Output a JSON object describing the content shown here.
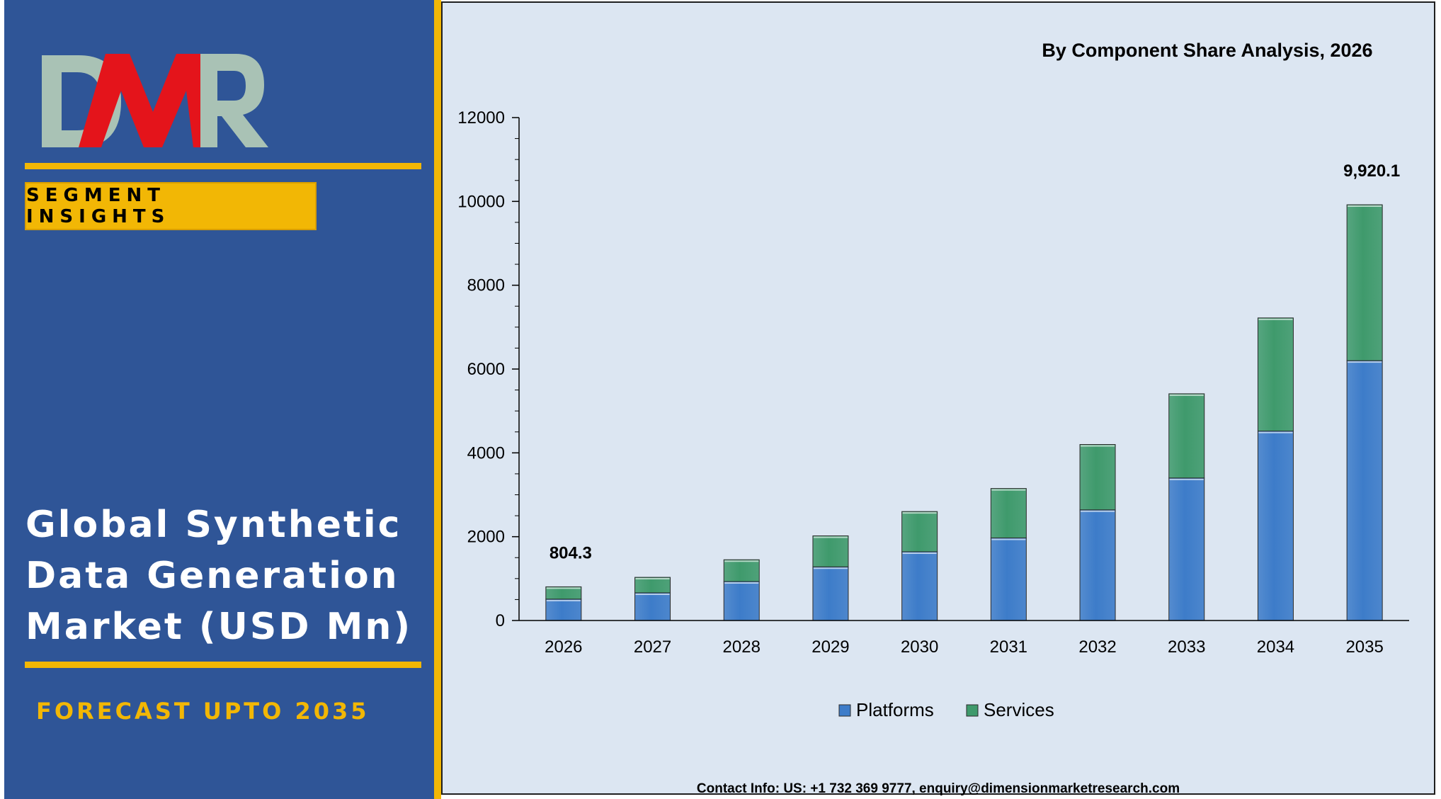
{
  "sidebar": {
    "logo_text": "DMR",
    "badge": "SEGMENT INSIGHTS",
    "title_lines": [
      "Global Synthetic",
      "Data Generation",
      "Market (USD Mn)"
    ],
    "forecast": "FORECAST UPTO 2035"
  },
  "colors": {
    "panel_blue": "#2f5597",
    "gold": "#f2b705",
    "chart_bg": "#dce6f2",
    "platforms": "#3d7cc9",
    "services": "#3f9a6c",
    "logo_red": "#e4141b",
    "logo_gray": "#a9c2b5"
  },
  "chart_data": {
    "type": "bar",
    "stacked": true,
    "title": "By Component Share Analysis, 2026",
    "categories": [
      "2026",
      "2027",
      "2028",
      "2029",
      "2030",
      "2031",
      "2032",
      "2033",
      "2034",
      "2035"
    ],
    "series": [
      {
        "name": "Platforms",
        "values": [
          510,
          660,
          930,
          1280,
          1640,
          1970,
          2640,
          3400,
          4520,
          6200
        ]
      },
      {
        "name": "Services",
        "values": [
          294.3,
          370,
          520,
          740,
          960,
          1180,
          1560,
          2010,
          2700,
          3720.1
        ]
      }
    ],
    "data_labels": [
      {
        "category": "2026",
        "text": "804.3"
      },
      {
        "category": "2035",
        "text": "9,920.1"
      }
    ],
    "ylim": [
      0,
      12000
    ],
    "y_ticks": [
      "0",
      "2000",
      "4000",
      "6000",
      "8000",
      "10000",
      "12000"
    ],
    "legend_position": "bottom",
    "grid": false
  },
  "footer": {
    "contact": "Contact Info: US: +1 732 369 9777, enquiry@dimensionmarketresearch.com"
  }
}
